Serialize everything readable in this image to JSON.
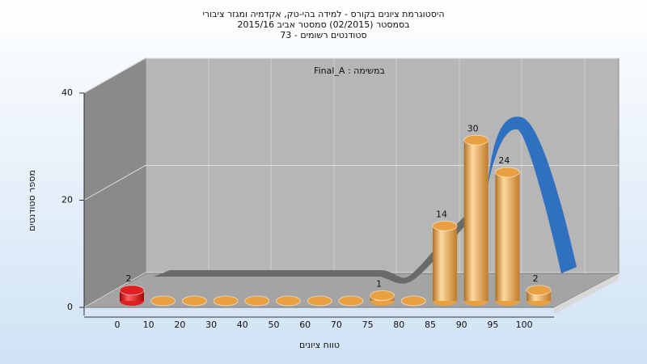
{
  "chart_data": {
    "type": "bar",
    "title": "היסטוגרמת ציונים בקורס - למידה בהי-טק, אקדמיה ומגזר ציבורי",
    "subtitle": "בסמסטר  (02/2015)  סמסטר אביב 2015/16",
    "subtitle2": "סטודנטים רשומים - 73",
    "annotation": "Final_A : במשימה",
    "x_label": "טווח ציונים",
    "y_label": "מספר סטודנטים",
    "categories": [
      "0",
      "10",
      "20",
      "30",
      "40",
      "50",
      "60",
      "70",
      "75",
      "80",
      "85",
      "90",
      "95",
      "100"
    ],
    "values": [
      2,
      0,
      0,
      0,
      0,
      0,
      0,
      0,
      1,
      0,
      14,
      30,
      24,
      2
    ],
    "colors": [
      "#e02020",
      "#e8a040",
      "#e8a040",
      "#e8a040",
      "#e8a040",
      "#e8a040",
      "#e8a040",
      "#e8a040",
      "#e8a040",
      "#e8a040",
      "#e8a040",
      "#e8a040",
      "#e8a040",
      "#e8a040"
    ],
    "ylim": [
      0,
      40
    ],
    "yticks": [
      0,
      20,
      40
    ],
    "grid": true
  }
}
